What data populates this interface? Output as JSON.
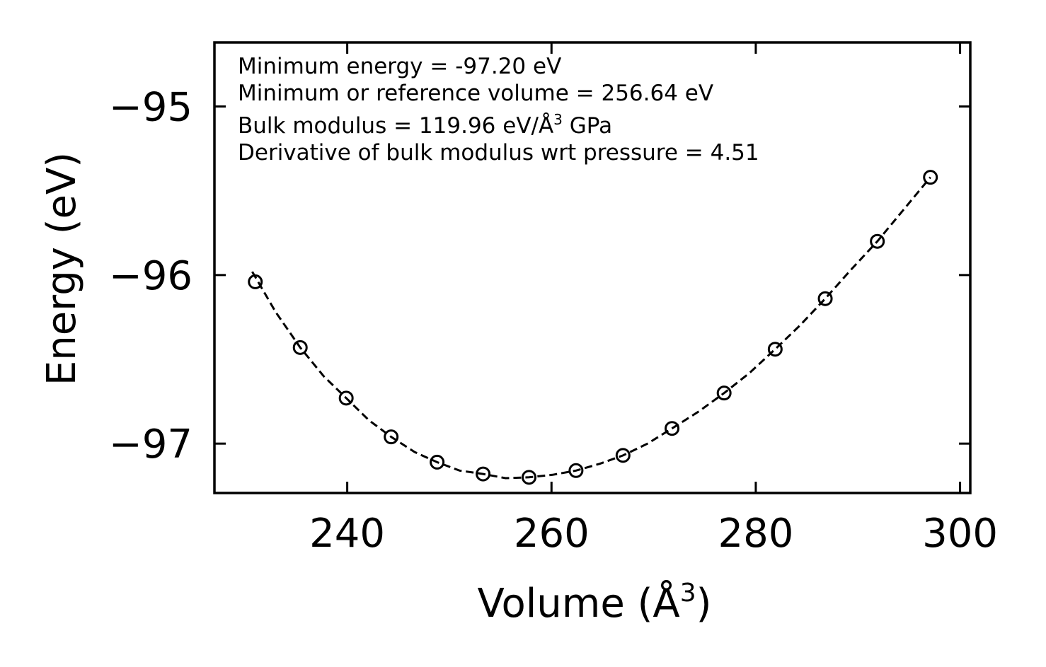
{
  "chart_data": {
    "type": "scatter",
    "title": "",
    "xlabel": {
      "prefix": "Volume (Å",
      "sup": "3",
      "suffix": ")"
    },
    "ylabel": "Energy (eV)",
    "xlim": [
      227.0,
      301.0
    ],
    "ylim": [
      -97.293,
      -94.62
    ],
    "xticks": [
      240,
      260,
      280,
      300
    ],
    "xtick_labels": [
      "240",
      "260",
      "280",
      "300"
    ],
    "yticks": [
      -97,
      -96,
      -95
    ],
    "ytick_labels": [
      "−97",
      "−96",
      "−95"
    ],
    "series": [
      {
        "name": "data",
        "marker": "open-circle",
        "x": [
          231.0,
          235.4,
          239.9,
          244.3,
          248.8,
          253.3,
          257.8,
          262.4,
          267.0,
          271.8,
          276.9,
          281.9,
          286.8,
          291.9,
          297.1
        ],
        "y": [
          -96.04,
          -96.43,
          -96.73,
          -96.96,
          -97.11,
          -97.18,
          -97.2,
          -97.16,
          -97.07,
          -96.91,
          -96.7,
          -96.44,
          -96.14,
          -95.8,
          -95.42
        ]
      },
      {
        "name": "fit",
        "style": "dashed",
        "x": [
          230.7,
          233.0,
          235.4,
          237.7,
          239.9,
          242.1,
          244.3,
          246.6,
          248.8,
          251.0,
          253.3,
          255.5,
          257.8,
          260.1,
          262.4,
          264.7,
          267.0,
          269.4,
          271.8,
          274.4,
          276.9,
          279.4,
          281.9,
          284.3,
          286.8,
          289.3,
          291.9,
          294.5,
          297.1
        ],
        "y": [
          -95.98,
          -96.22,
          -96.43,
          -96.6,
          -96.73,
          -96.86,
          -96.96,
          -97.05,
          -97.11,
          -97.16,
          -97.18,
          -97.205,
          -97.2,
          -97.185,
          -97.16,
          -97.12,
          -97.07,
          -97.0,
          -96.91,
          -96.81,
          -96.7,
          -96.58,
          -96.44,
          -96.3,
          -96.14,
          -95.97,
          -95.8,
          -95.61,
          -95.42
        ]
      }
    ],
    "annotations": [
      {
        "text": "Minimum energy = -97.20 eV"
      },
      {
        "text": "Minimum or reference volume = 256.64 eV"
      },
      {
        "prefix": "Bulk modulus = 119.96 eV/Å",
        "sup": "3",
        "suffix": " GPa"
      },
      {
        "text": "Derivative of bulk modulus wrt pressure = 4.51"
      }
    ],
    "grid": false,
    "legend": "none"
  }
}
